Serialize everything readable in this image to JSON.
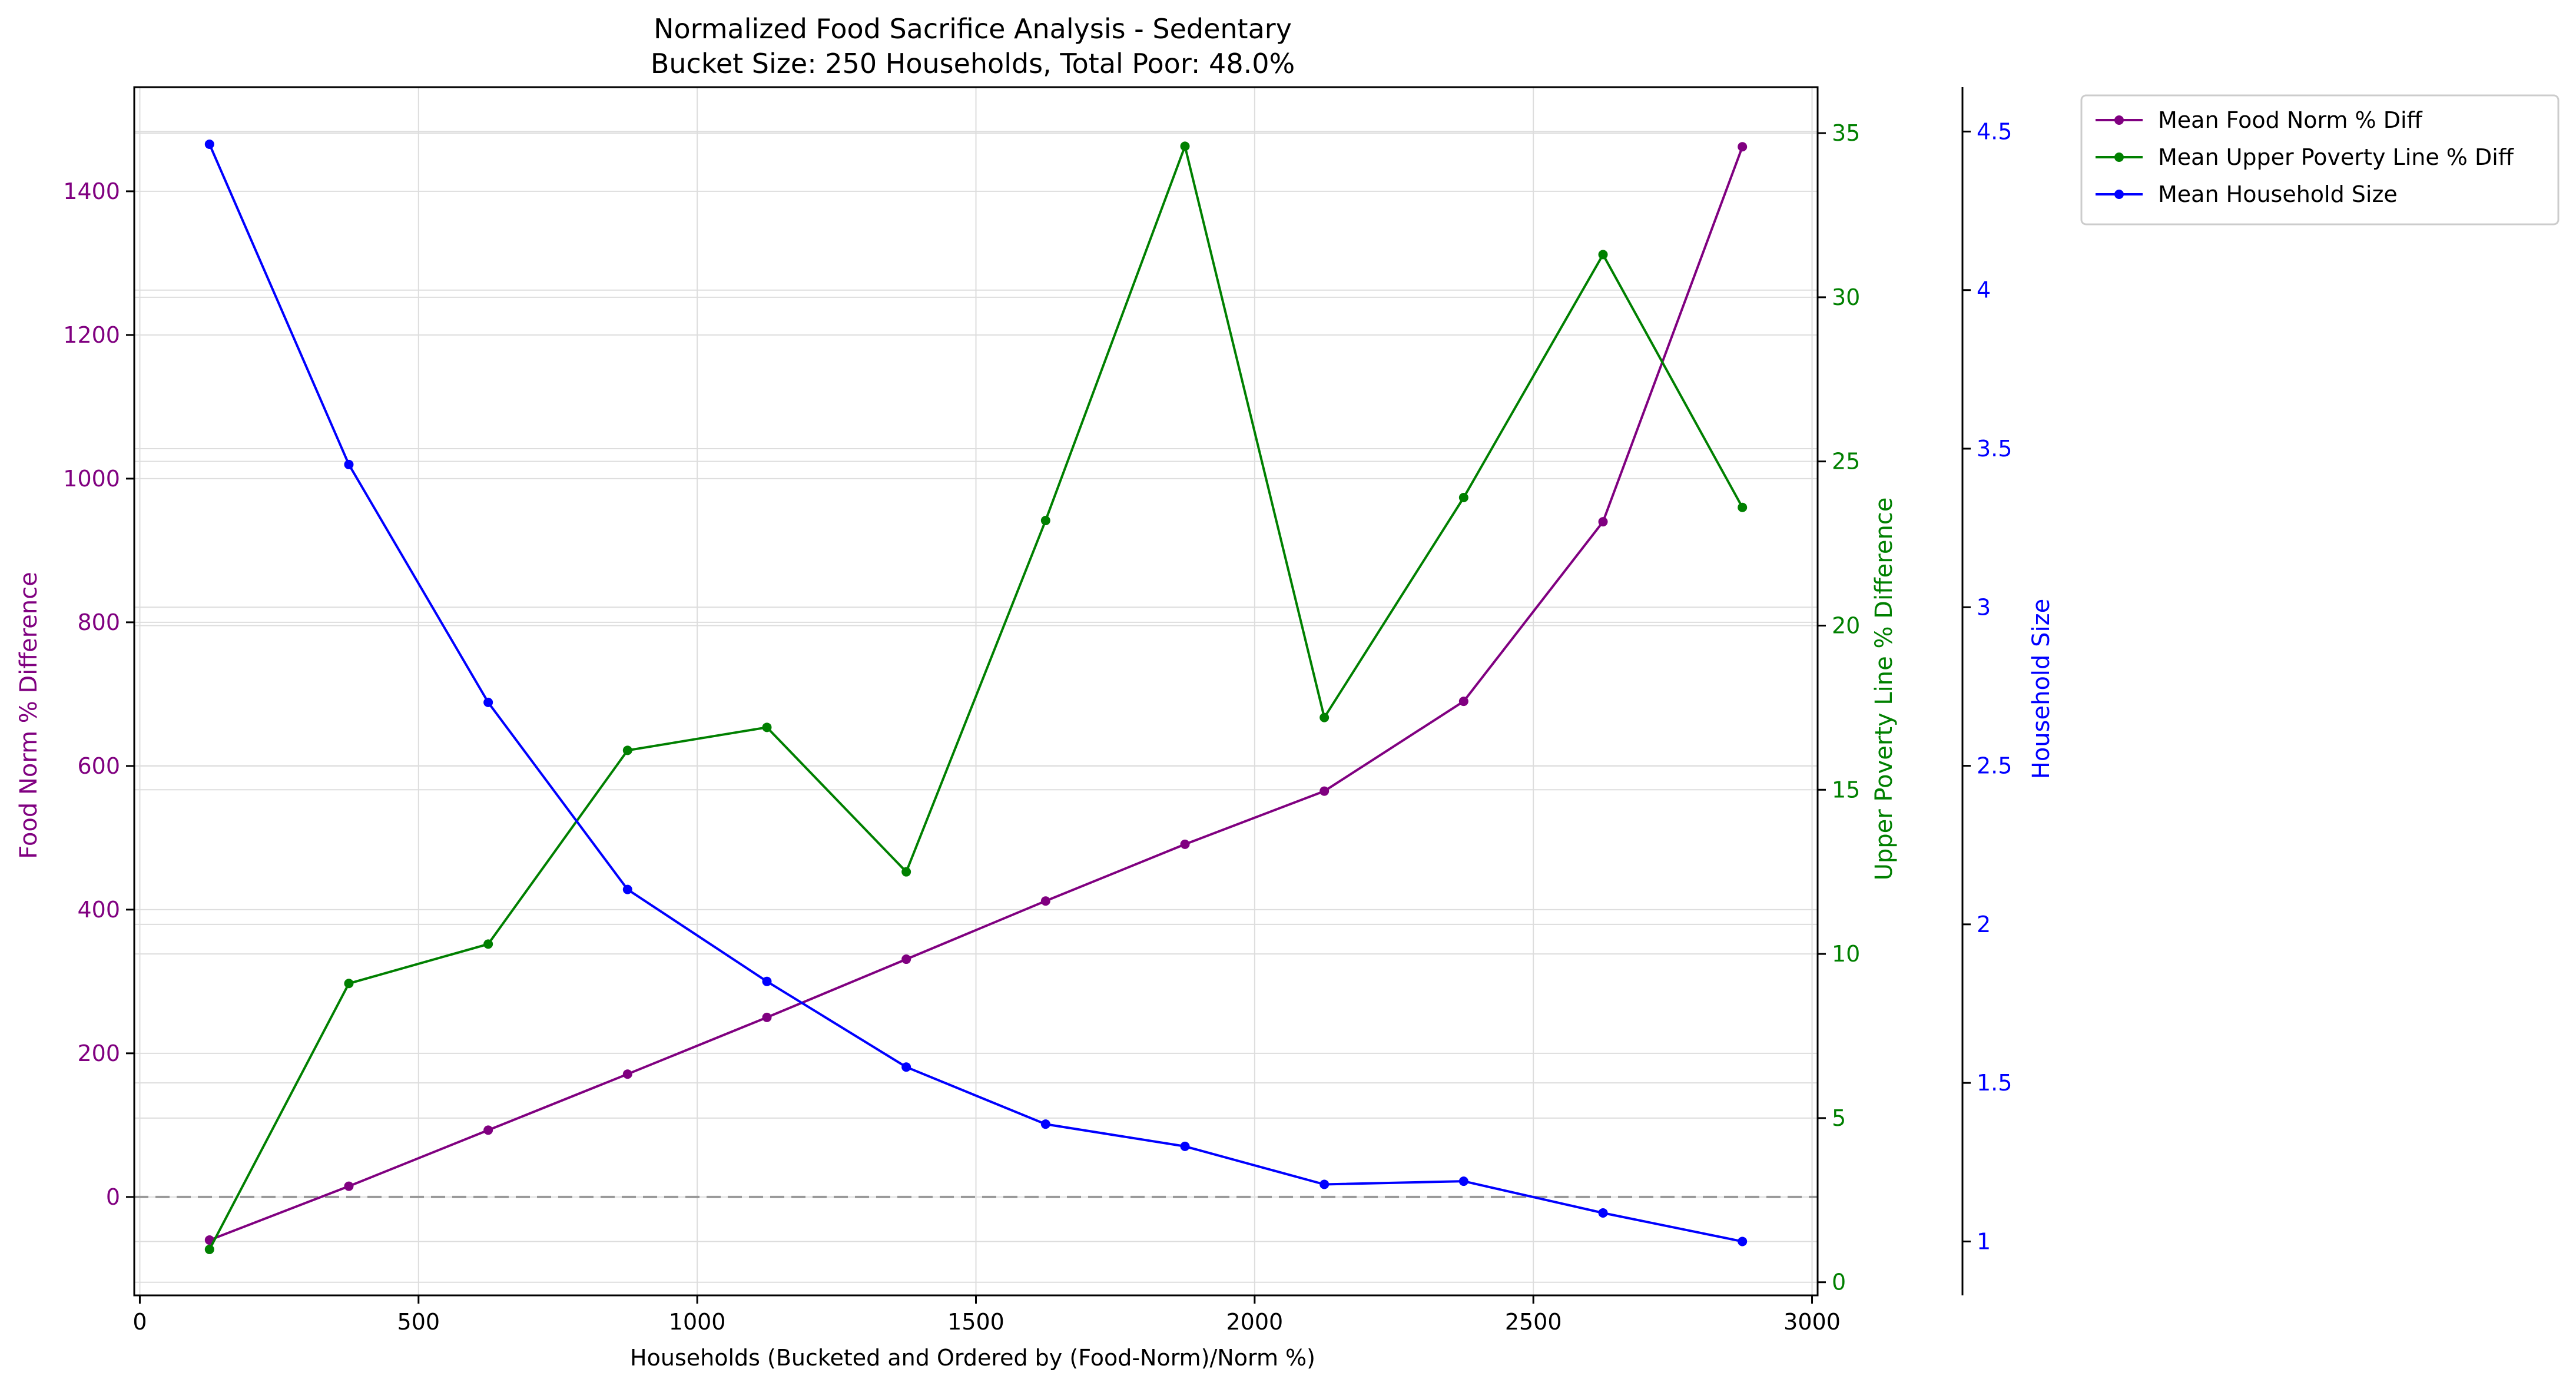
{
  "chart_data": {
    "type": "line",
    "title": "Normalized Food Sacrifice Analysis - Sedentary",
    "subtitle": "Bucket Size: 250 Households, Total Poor: 48.0%",
    "xlabel": "Households (Bucketed and Ordered by (Food-Norm)/Norm %)",
    "x": [
      125,
      375,
      625,
      875,
      1125,
      1375,
      1625,
      1875,
      2125,
      2375,
      2625,
      2875
    ],
    "xlim": [
      -10,
      3010
    ],
    "xticks": [
      0,
      500,
      1000,
      1500,
      2000,
      2500,
      3000
    ],
    "grid": true,
    "legend_position": "outside-top-right",
    "reference_line": {
      "axis": "left",
      "value": 0,
      "style": "dashed",
      "color": "#999999"
    },
    "axes": {
      "left": {
        "label": "Food Norm % Difference",
        "color": "#800080",
        "ylim": [
          -137,
          1545
        ],
        "ticks": [
          0,
          200,
          400,
          600,
          800,
          1000,
          1200,
          1400
        ]
      },
      "right1": {
        "label": "Upper Poverty Line % Difference",
        "color": "#008000",
        "ylim": [
          -0.4,
          36.4
        ],
        "ticks": [
          0,
          5,
          10,
          15,
          20,
          25,
          30,
          35
        ]
      },
      "right2": {
        "label": "Household Size",
        "color": "#0000ff",
        "ylim": [
          0.83,
          4.64
        ],
        "ticks": [
          1.0,
          1.5,
          2.0,
          2.5,
          3.0,
          3.5,
          4.0,
          4.5
        ]
      }
    },
    "series": [
      {
        "name": "Mean Food Norm % Diff",
        "axis": "left",
        "color": "#800080",
        "values": [
          -60,
          15,
          93,
          171,
          250,
          331,
          412,
          491,
          565,
          690,
          940,
          1462
        ]
      },
      {
        "name": "Mean Upper Poverty Line % Diff",
        "axis": "right1",
        "color": "#008000",
        "values": [
          1.0,
          9.1,
          10.3,
          16.2,
          16.9,
          12.5,
          23.2,
          34.6,
          17.2,
          23.9,
          31.3,
          23.6
        ]
      },
      {
        "name": "Mean Household Size",
        "axis": "right2",
        "color": "#0000ff",
        "values": [
          4.46,
          3.45,
          2.7,
          2.11,
          1.82,
          1.55,
          1.37,
          1.3,
          1.18,
          1.19,
          1.09,
          1.0
        ]
      }
    ]
  }
}
